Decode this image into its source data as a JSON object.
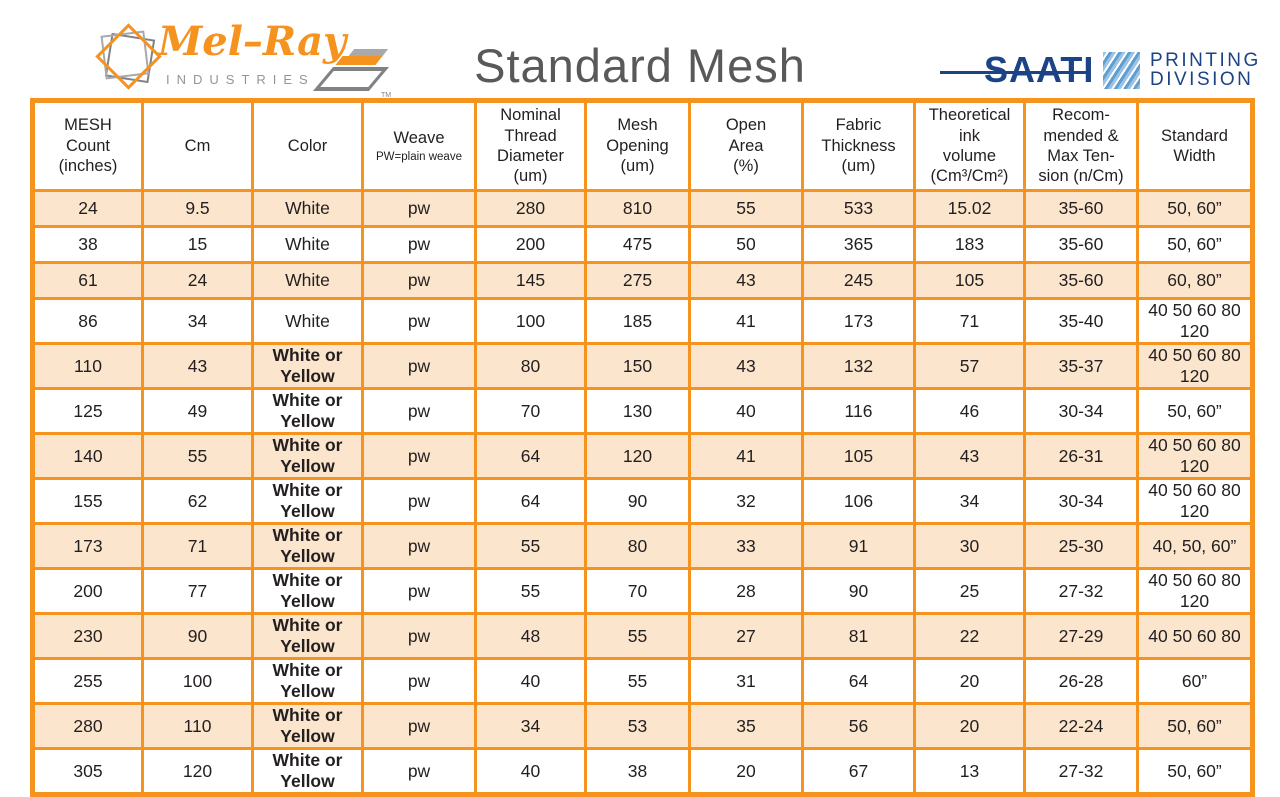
{
  "title": "Standard Mesh",
  "melray_logo": {
    "name": "Mel–Ray",
    "industries": "INDUSTRIES",
    "tm": "TM"
  },
  "saati_logo": {
    "name": "SAATI",
    "division_line1": "PRINTING",
    "division_line2": "DIVISION"
  },
  "colors": {
    "orange": "#F6921E",
    "peach": "#FBE5CC",
    "navy": "#1B4385",
    "title-gray": "#58595B",
    "ind-gray": "#939598",
    "text": "#231F20"
  },
  "table": {
    "headers": [
      {
        "label": "MESH\nCount\n(inches)",
        "sub": ""
      },
      {
        "label": "Cm",
        "sub": ""
      },
      {
        "label": "Color",
        "sub": ""
      },
      {
        "label": "Weave",
        "sub": "PW=plain weave"
      },
      {
        "label": "Nominal\nThread\nDiameter\n(um)",
        "sub": ""
      },
      {
        "label": "Mesh\nOpening\n(um)",
        "sub": ""
      },
      {
        "label": "Open\nArea\n(%)",
        "sub": ""
      },
      {
        "label": "Fabric\nThickness\n(um)",
        "sub": ""
      },
      {
        "label": "Theoretical\nink\nvolume\n(Cm³/Cm²)",
        "sub": ""
      },
      {
        "label": "Recom-\nmended &\nMax Ten-\nsion (n/Cm)",
        "sub": ""
      },
      {
        "label": "Standard\nWidth",
        "sub": ""
      }
    ],
    "rows": [
      [
        "24",
        "9.5",
        "White",
        "pw",
        "280",
        "810",
        "55",
        "533",
        "15.02",
        "35-60",
        "50, 60”"
      ],
      [
        "38",
        "15",
        "White",
        "pw",
        "200",
        "475",
        "50",
        "365",
        "183",
        "35-60",
        "50, 60”"
      ],
      [
        "61",
        "24",
        "White",
        "pw",
        "145",
        "275",
        "43",
        "245",
        "105",
        "35-60",
        "60, 80”"
      ],
      [
        "86",
        "34",
        "White",
        "pw",
        "100",
        "185",
        "41",
        "173",
        "71",
        "35-40",
        "40 50 60 80 120"
      ],
      [
        "110",
        "43",
        "White or Yellow",
        "pw",
        "80",
        "150",
        "43",
        "132",
        "57",
        "35-37",
        "40 50 60 80 120"
      ],
      [
        "125",
        "49",
        "White or Yellow",
        "pw",
        "70",
        "130",
        "40",
        "116",
        "46",
        "30-34",
        "50, 60”"
      ],
      [
        "140",
        "55",
        "White or Yellow",
        "pw",
        "64",
        "120",
        "41",
        "105",
        "43",
        "26-31",
        "40 50 60 80 120"
      ],
      [
        "155",
        "62",
        "White or Yellow",
        "pw",
        "64",
        "90",
        "32",
        "106",
        "34",
        "30-34",
        "40 50 60 80 120"
      ],
      [
        "173",
        "71",
        "White or Yellow",
        "pw",
        "55",
        "80",
        "33",
        "91",
        "30",
        "25-30",
        "40, 50, 60”"
      ],
      [
        "200",
        "77",
        "White or Yellow",
        "pw",
        "55",
        "70",
        "28",
        "90",
        "25",
        "27-32",
        "40 50 60 80 120"
      ],
      [
        "230",
        "90",
        "White or Yellow",
        "pw",
        "48",
        "55",
        "27",
        "81",
        "22",
        "27-29",
        "40 50 60 80"
      ],
      [
        "255",
        "100",
        "White or Yellow",
        "pw",
        "40",
        "55",
        "31",
        "64",
        "20",
        "26-28",
        "60”"
      ],
      [
        "280",
        "110",
        "White or Yellow",
        "pw",
        "34",
        "53",
        "35",
        "56",
        "20",
        "22-24",
        "50, 60”"
      ],
      [
        "305",
        "120",
        "White or Yellow",
        "pw",
        "40",
        "38",
        "20",
        "67",
        "13",
        "27-32",
        "50, 60”"
      ]
    ]
  }
}
